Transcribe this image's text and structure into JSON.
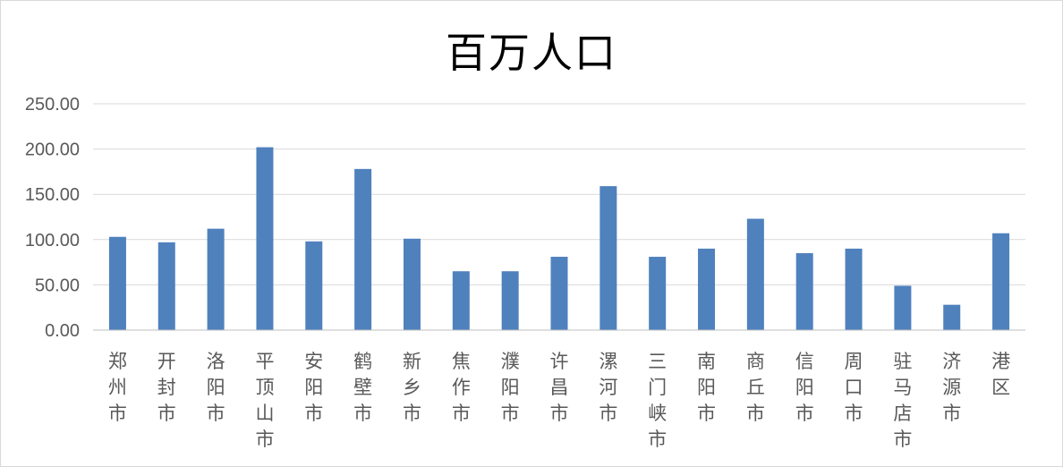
{
  "chart_data": {
    "type": "bar",
    "title": "百万人口",
    "xlabel": "",
    "ylabel": "",
    "ylim": [
      0,
      250
    ],
    "yticks": [
      "0.00",
      "50.00",
      "100.00",
      "150.00",
      "200.00",
      "250.00"
    ],
    "grid": true,
    "legend": "none",
    "bar_color": "#4f81bd",
    "categories": [
      "郑州市",
      "开封市",
      "洛阳市",
      "平顶山市",
      "安阳市",
      "鹤壁市",
      "新乡市",
      "焦作市",
      "濮阳市",
      "许昌市",
      "漯河市",
      "三门峡市",
      "南阳市",
      "商丘市",
      "信阳市",
      "周口市",
      "驻马店市",
      "济源市",
      "港区"
    ],
    "values": [
      103,
      97,
      112,
      202,
      98,
      178,
      101,
      65,
      65,
      81,
      159,
      81,
      90,
      123,
      85,
      90,
      49,
      28,
      107
    ]
  }
}
